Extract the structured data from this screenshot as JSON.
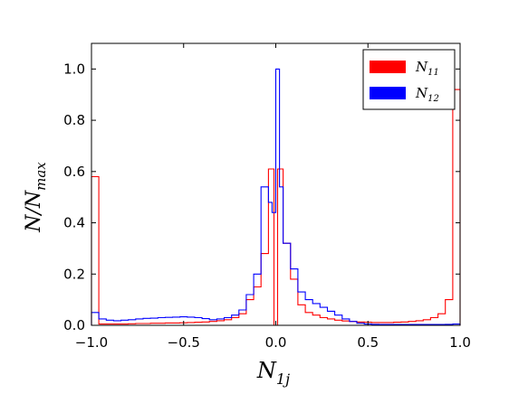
{
  "chart_data": {
    "type": "step-histogram",
    "xlim": [
      -1.0,
      1.0
    ],
    "ylim": [
      0.0,
      1.1
    ],
    "xticks": [
      -1.0,
      -0.5,
      0.0,
      0.5,
      1.0
    ],
    "xtick_labels": [
      "−1.0",
      "−0.5",
      "0.0",
      "0.5",
      "1.0"
    ],
    "yticks": [
      0.0,
      0.2,
      0.4,
      0.6,
      0.8,
      1.0
    ],
    "ytick_labels": [
      "0.0",
      "0.2",
      "0.4",
      "0.6",
      "0.8",
      "1.0"
    ],
    "grid": false,
    "legend_position": "top-right",
    "bin_width": 0.04,
    "series": [
      {
        "name": "N11",
        "legend_main": "N",
        "legend_sub": "11",
        "color": "#ff0000",
        "bins": [
          [
            -1.0,
            -0.96,
            0.58
          ],
          [
            -0.96,
            -0.92,
            0.005
          ],
          [
            -0.92,
            -0.88,
            0.005
          ],
          [
            -0.88,
            -0.84,
            0.005
          ],
          [
            -0.84,
            -0.8,
            0.005
          ],
          [
            -0.8,
            -0.76,
            0.006
          ],
          [
            -0.76,
            -0.72,
            0.007
          ],
          [
            -0.72,
            -0.68,
            0.007
          ],
          [
            -0.68,
            -0.64,
            0.008
          ],
          [
            -0.64,
            -0.6,
            0.008
          ],
          [
            -0.6,
            -0.56,
            0.009
          ],
          [
            -0.56,
            -0.52,
            0.009
          ],
          [
            -0.52,
            -0.48,
            0.01
          ],
          [
            -0.48,
            -0.44,
            0.011
          ],
          [
            -0.44,
            -0.4,
            0.012
          ],
          [
            -0.4,
            -0.36,
            0.013
          ],
          [
            -0.36,
            -0.32,
            0.015
          ],
          [
            -0.32,
            -0.28,
            0.018
          ],
          [
            -0.28,
            -0.24,
            0.022
          ],
          [
            -0.24,
            -0.2,
            0.03
          ],
          [
            -0.2,
            -0.16,
            0.045
          ],
          [
            -0.16,
            -0.12,
            0.1
          ],
          [
            -0.12,
            -0.08,
            0.15
          ],
          [
            -0.08,
            -0.04,
            0.28
          ],
          [
            -0.04,
            -0.01,
            0.61
          ],
          [
            -0.01,
            0.01,
            0.0
          ],
          [
            0.01,
            0.04,
            0.61
          ],
          [
            0.04,
            0.08,
            0.32
          ],
          [
            0.08,
            0.12,
            0.18
          ],
          [
            0.12,
            0.16,
            0.08
          ],
          [
            0.16,
            0.2,
            0.05
          ],
          [
            0.2,
            0.24,
            0.04
          ],
          [
            0.24,
            0.28,
            0.03
          ],
          [
            0.28,
            0.32,
            0.025
          ],
          [
            0.32,
            0.36,
            0.02
          ],
          [
            0.36,
            0.4,
            0.017
          ],
          [
            0.4,
            0.44,
            0.015
          ],
          [
            0.44,
            0.48,
            0.013
          ],
          [
            0.48,
            0.52,
            0.012
          ],
          [
            0.52,
            0.56,
            0.011
          ],
          [
            0.56,
            0.6,
            0.011
          ],
          [
            0.6,
            0.64,
            0.011
          ],
          [
            0.64,
            0.68,
            0.012
          ],
          [
            0.68,
            0.72,
            0.013
          ],
          [
            0.72,
            0.76,
            0.015
          ],
          [
            0.76,
            0.8,
            0.018
          ],
          [
            0.8,
            0.84,
            0.022
          ],
          [
            0.84,
            0.88,
            0.03
          ],
          [
            0.88,
            0.92,
            0.045
          ],
          [
            0.92,
            0.96,
            0.1
          ],
          [
            0.96,
            1.0,
            0.92
          ]
        ]
      },
      {
        "name": "N12",
        "legend_main": "N",
        "legend_sub": "12",
        "color": "#0000ff",
        "bins": [
          [
            -1.0,
            -0.96,
            0.05
          ],
          [
            -0.96,
            -0.92,
            0.025
          ],
          [
            -0.92,
            -0.88,
            0.02
          ],
          [
            -0.88,
            -0.84,
            0.018
          ],
          [
            -0.84,
            -0.8,
            0.02
          ],
          [
            -0.8,
            -0.76,
            0.022
          ],
          [
            -0.76,
            -0.72,
            0.025
          ],
          [
            -0.72,
            -0.68,
            0.027
          ],
          [
            -0.68,
            -0.64,
            0.028
          ],
          [
            -0.64,
            -0.6,
            0.03
          ],
          [
            -0.6,
            -0.56,
            0.031
          ],
          [
            -0.56,
            -0.52,
            0.032
          ],
          [
            -0.52,
            -0.48,
            0.033
          ],
          [
            -0.48,
            -0.44,
            0.032
          ],
          [
            -0.44,
            -0.4,
            0.03
          ],
          [
            -0.4,
            -0.36,
            0.026
          ],
          [
            -0.36,
            -0.32,
            0.022
          ],
          [
            -0.32,
            -0.28,
            0.025
          ],
          [
            -0.28,
            -0.24,
            0.03
          ],
          [
            -0.24,
            -0.2,
            0.04
          ],
          [
            -0.2,
            -0.16,
            0.06
          ],
          [
            -0.16,
            -0.12,
            0.12
          ],
          [
            -0.12,
            -0.08,
            0.2
          ],
          [
            -0.08,
            -0.04,
            0.54
          ],
          [
            -0.04,
            -0.02,
            0.48
          ],
          [
            -0.02,
            0.0,
            0.44
          ],
          [
            0.0,
            0.02,
            1.0
          ],
          [
            0.02,
            0.04,
            0.54
          ],
          [
            0.04,
            0.08,
            0.32
          ],
          [
            0.08,
            0.12,
            0.22
          ],
          [
            0.12,
            0.16,
            0.13
          ],
          [
            0.16,
            0.2,
            0.1
          ],
          [
            0.2,
            0.24,
            0.085
          ],
          [
            0.24,
            0.28,
            0.07
          ],
          [
            0.28,
            0.32,
            0.055
          ],
          [
            0.32,
            0.36,
            0.04
          ],
          [
            0.36,
            0.4,
            0.025
          ],
          [
            0.4,
            0.44,
            0.015
          ],
          [
            0.44,
            0.48,
            0.008
          ],
          [
            0.48,
            0.52,
            0.005
          ],
          [
            0.52,
            0.56,
            0.004
          ],
          [
            0.56,
            0.6,
            0.003
          ],
          [
            0.6,
            0.64,
            0.003
          ],
          [
            0.64,
            0.68,
            0.003
          ],
          [
            0.68,
            0.72,
            0.003
          ],
          [
            0.72,
            0.76,
            0.003
          ],
          [
            0.76,
            0.8,
            0.003
          ],
          [
            0.8,
            0.84,
            0.003
          ],
          [
            0.84,
            0.88,
            0.003
          ],
          [
            0.88,
            0.92,
            0.003
          ],
          [
            0.92,
            0.96,
            0.004
          ],
          [
            0.96,
            1.0,
            0.005
          ]
        ]
      }
    ]
  }
}
